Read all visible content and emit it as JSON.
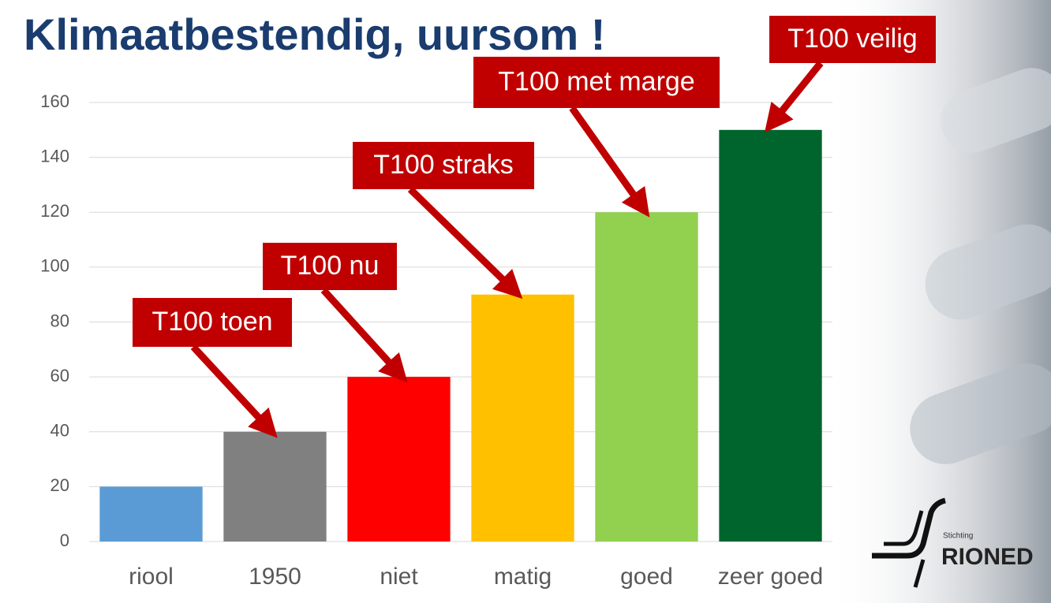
{
  "chart_data": {
    "type": "bar",
    "title": "Klimaatbestendig, uursom !",
    "categories": [
      "riool",
      "1950",
      "niet",
      "matig",
      "goed",
      "zeer goed"
    ],
    "series": [
      {
        "values": [
          20,
          40,
          60,
          90,
          120,
          150
        ],
        "colors": [
          "#5b9bd5",
          "#808080",
          "#ff0000",
          "#ffc000",
          "#92d050",
          "#00642d"
        ]
      }
    ],
    "ylim": [
      0,
      160
    ],
    "yticks": [
      0,
      20,
      40,
      60,
      80,
      100,
      120,
      140,
      160
    ],
    "grid": true,
    "annotations": [
      "T100 toen",
      "T100 nu",
      "T100 straks",
      "T100 met marge",
      "T100 veilig"
    ]
  },
  "logo": {
    "small": "Stichting",
    "name": "RIONED"
  }
}
